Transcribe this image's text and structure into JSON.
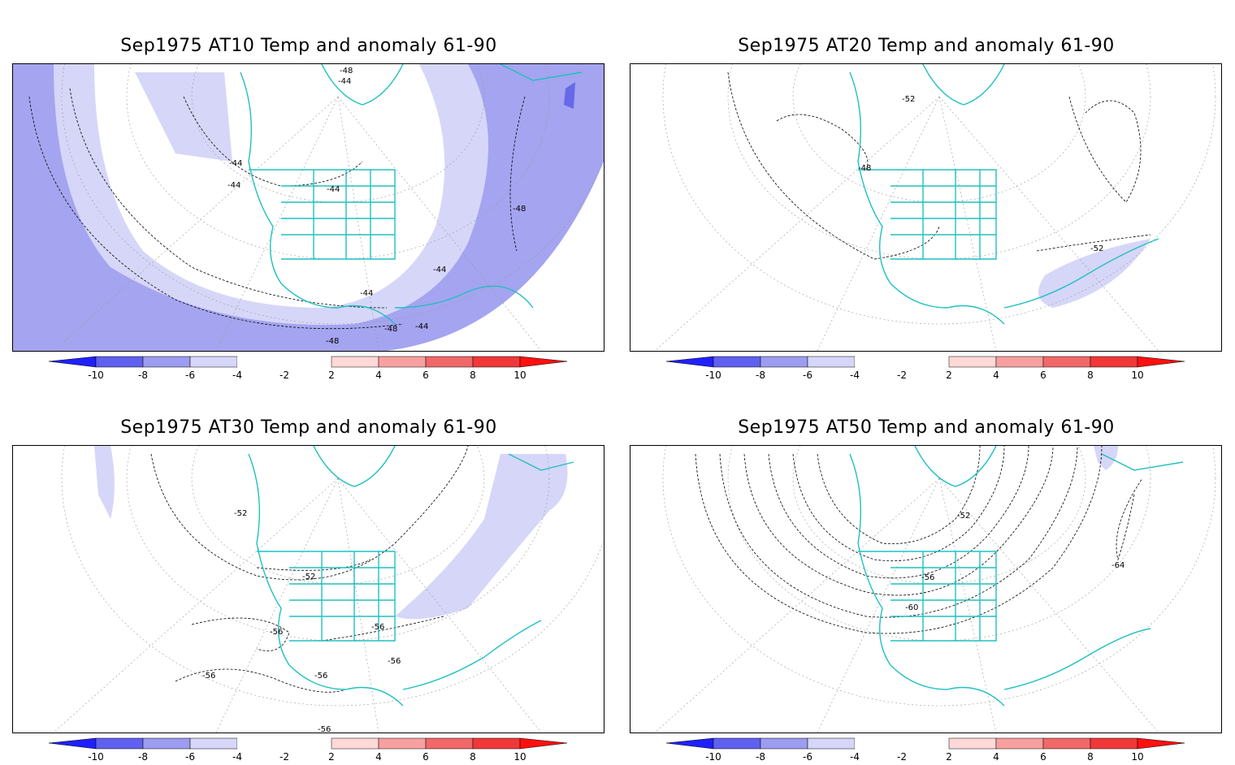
{
  "panels": [
    {
      "title": "Sep1975 AT10 Temp and anomaly 61-90",
      "contour_labels": [
        "-48",
        "-44",
        "-44",
        "-44",
        "-44",
        "-48",
        "-44",
        "-44",
        "-48",
        "-44",
        "-48"
      ]
    },
    {
      "title": "Sep1975 AT20 Temp and anomaly 61-90",
      "contour_labels": [
        "-52",
        "-48",
        "-52"
      ]
    },
    {
      "title": "Sep1975 AT30 Temp and anomaly 61-90",
      "contour_labels": [
        "-52",
        "-52",
        "-56",
        "-56",
        "-56",
        "-56",
        "-56",
        "-56"
      ]
    },
    {
      "title": "Sep1975 AT50 Temp and anomaly 61-90",
      "contour_labels": [
        "-52",
        "-56",
        "-60",
        "-64"
      ]
    }
  ],
  "colorbar": {
    "labels": [
      "-10",
      "-8",
      "-6",
      "-4",
      "-2",
      "2",
      "4",
      "6",
      "8",
      "10"
    ],
    "colors": [
      "#2020ff",
      "#6060f0",
      "#9c9cf0",
      "#d6d6f8",
      "#ffffff",
      "#ffffff",
      "#ffd8d8",
      "#f8a0a0",
      "#f06868",
      "#f03838",
      "#ff1010"
    ]
  },
  "map_colors": {
    "coast": "#20c0c0",
    "anomaly_-2": "#d6d6f8",
    "anomaly_-4": "#a4a4f0",
    "anomaly_-6": "#7070e8"
  }
}
